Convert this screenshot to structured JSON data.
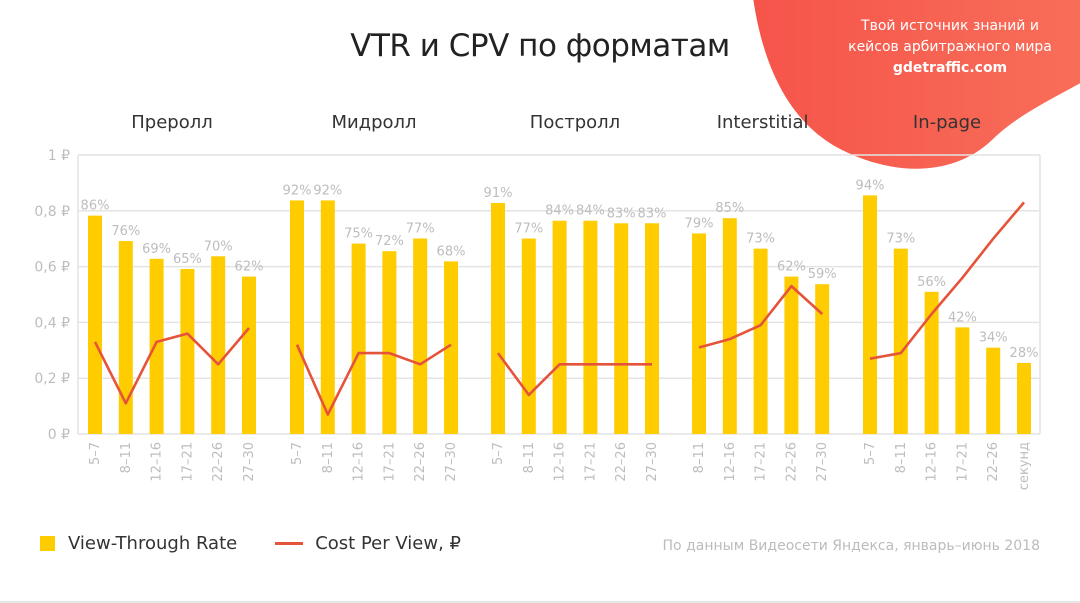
{
  "header": {
    "title": "VTR и CPV по форматам"
  },
  "promo": {
    "line1": "Твой источник знаний и",
    "line2": "кейсов арбитражного мира",
    "site": "gdetraffic.com",
    "color": "#F4604B"
  },
  "legend": {
    "vtr_label": "View-Through Rate",
    "cpv_label": "Cost Per View, ₽"
  },
  "source": "По данным Видеосети Яндекса, январь–июнь 2018",
  "colors": {
    "bar": "#FFCC00",
    "line": "#E5533A",
    "grid": "#e4e4e4",
    "tick": "#bdbdbd"
  },
  "chart_data": {
    "type": "bar",
    "title": "VTR и CPV по форматам",
    "xlabel": "",
    "ylabel": "",
    "ylim": [
      0,
      1
    ],
    "y_ticks": [
      "0 ₽",
      "0,2 ₽",
      "0,4 ₽",
      "0,6 ₽",
      "0,8 ₽",
      "1 ₽"
    ],
    "grid": true,
    "legend_position": "bottom-left",
    "series_names": [
      "View-Through Rate",
      "Cost Per View, ₽"
    ],
    "groups": [
      {
        "name": "Преролл",
        "categories": [
          "5–7",
          "8–11",
          "12–16",
          "17–21",
          "22–26",
          "27–30"
        ],
        "vtr": [
          86,
          76,
          69,
          65,
          70,
          62
        ],
        "cpv": [
          0.33,
          0.11,
          0.33,
          0.36,
          0.25,
          0.38
        ]
      },
      {
        "name": "Мидролл",
        "categories": [
          "5–7",
          "8–11",
          "12–16",
          "17–21",
          "22–26",
          "27–30"
        ],
        "vtr": [
          92,
          92,
          75,
          72,
          77,
          68
        ],
        "cpv": [
          0.32,
          0.07,
          0.29,
          0.29,
          0.25,
          0.32
        ]
      },
      {
        "name": "Постролл",
        "categories": [
          "5–7",
          "8–11",
          "12–16",
          "17–21",
          "22–26",
          "27–30"
        ],
        "vtr": [
          91,
          77,
          84,
          84,
          83,
          83
        ],
        "cpv": [
          0.29,
          0.14,
          0.25,
          0.25,
          0.25,
          0.25
        ]
      },
      {
        "name": "Interstitial",
        "categories": [
          "8–11",
          "12–16",
          "17–21",
          "22–26",
          "27–30"
        ],
        "vtr": [
          79,
          85,
          73,
          62,
          59
        ],
        "cpv": [
          0.31,
          0.34,
          0.39,
          0.53,
          0.43
        ]
      },
      {
        "name": "In-page",
        "categories": [
          "5–7",
          "8–11",
          "12–16",
          "17–21",
          "22–26",
          "секунд"
        ],
        "vtr": [
          94,
          73,
          56,
          42,
          34,
          28
        ],
        "cpv": [
          0.27,
          0.29,
          0.43,
          0.56,
          0.7,
          0.83
        ]
      }
    ]
  }
}
